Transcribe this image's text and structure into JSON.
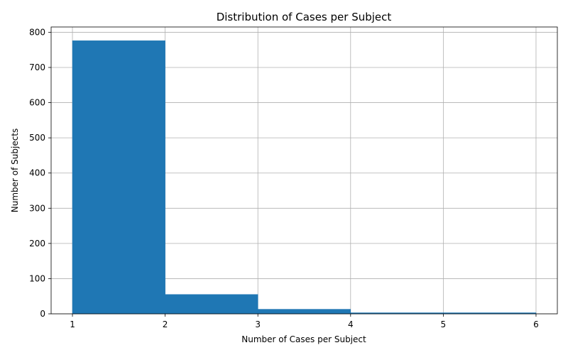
{
  "chart_data": {
    "type": "bar",
    "title": "Distribution of Cases per Subject",
    "xlabel": "Number of Cases per Subject",
    "ylabel": "Number of Subjects",
    "bins": [
      {
        "start": 1,
        "end": 2,
        "value": 776
      },
      {
        "start": 2,
        "end": 3,
        "value": 55
      },
      {
        "start": 3,
        "end": 4,
        "value": 13
      },
      {
        "start": 4,
        "end": 5,
        "value": 3
      },
      {
        "start": 5,
        "end": 6,
        "value": 3
      }
    ],
    "xlim": [
      0.77,
      6.23
    ],
    "ylim": [
      0,
      815
    ],
    "xticks": [
      "1",
      "2",
      "3",
      "4",
      "5",
      "6"
    ],
    "yticks": [
      "0",
      "100",
      "200",
      "300",
      "400",
      "500",
      "600",
      "700",
      "800"
    ],
    "grid": true,
    "bar_color": "#1f77b4"
  }
}
